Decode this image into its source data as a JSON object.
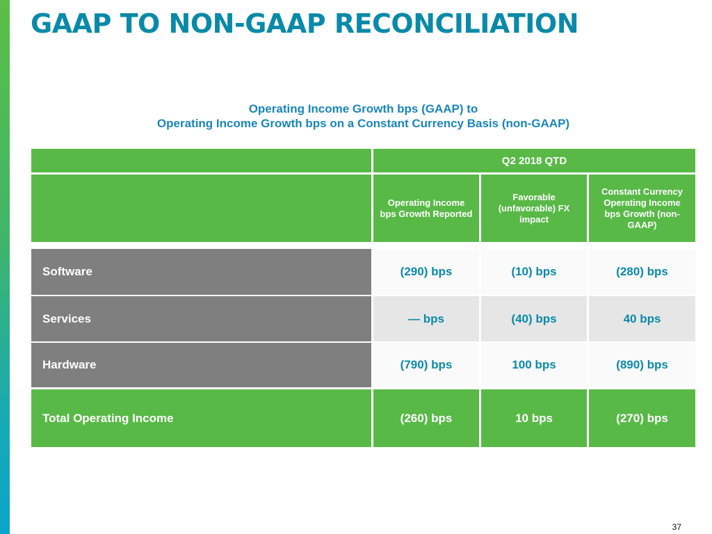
{
  "title": "GAAP TO NON-GAAP RECONCILIATION",
  "subtitle": {
    "line1": "Operating Income Growth bps (GAAP) to",
    "line2": "Operating Income Growth bps on a Constant Currency Basis (non-GAAP)"
  },
  "table": {
    "period_header": "Q2 2018 QTD",
    "columns": [
      "Operating Income bps Growth Reported",
      "Favorable (unfavorable) FX impact",
      "Constant Currency Operating Income bps Growth (non-GAAP)"
    ],
    "rows": [
      {
        "label": "Software",
        "values": [
          "(290) bps",
          "(10) bps",
          "(280) bps"
        ]
      },
      {
        "label": "Services",
        "values": [
          "— bps",
          "(40) bps",
          "40 bps"
        ]
      },
      {
        "label": "Hardware",
        "values": [
          "(790) bps",
          "100 bps",
          "(890) bps"
        ]
      }
    ],
    "total": {
      "label": "Total Operating Income",
      "values": [
        "(260) bps",
        "10 bps",
        "(270) bps"
      ]
    }
  },
  "page_number": "37",
  "colors": {
    "title": "#0a8aa8",
    "subtitle": "#1a86b8",
    "green": "#58b947",
    "grey": "#7f7f7f"
  }
}
